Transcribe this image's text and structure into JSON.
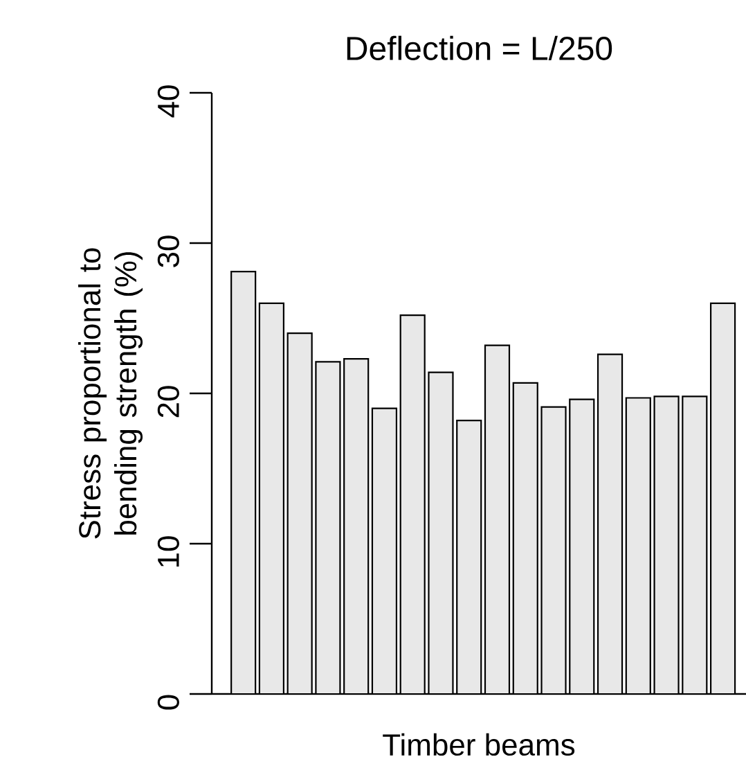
{
  "chart_data": {
    "type": "bar",
    "title": "Deflection = L/250",
    "xlabel": "Timber beams",
    "ylabel": "Stress proportional to bending strength (%)",
    "categories": [
      null,
      null,
      null,
      null,
      null,
      null,
      null,
      null,
      null,
      null,
      null,
      null,
      null,
      null,
      null,
      null,
      null,
      null
    ],
    "values": [
      28.1,
      26.0,
      24.0,
      22.1,
      22.3,
      19.0,
      25.2,
      21.4,
      18.2,
      23.2,
      20.7,
      19.1,
      19.6,
      22.6,
      19.7,
      19.8,
      19.8,
      26.0
    ],
    "color": "#e8e8e8",
    "ylim": [
      0,
      40
    ],
    "yticks": [
      0,
      10,
      20,
      30,
      40
    ]
  }
}
